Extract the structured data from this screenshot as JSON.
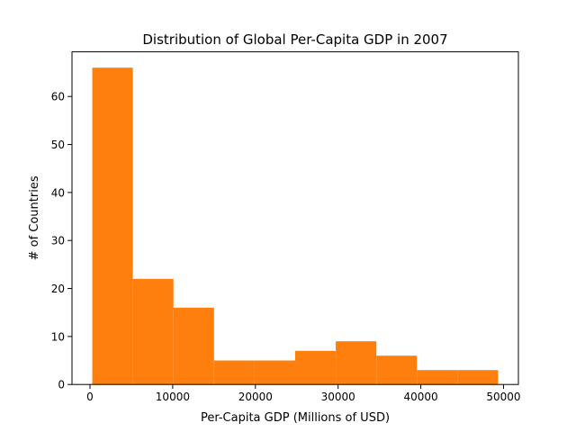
{
  "chart_data": {
    "type": "bar",
    "title": "Distribution of Global Per-Capita GDP in 2007",
    "xlabel": "Per-Capita GDP (Millions of USD)",
    "ylabel": "# of Countries",
    "bins": [
      {
        "start": 277.55,
        "end": 5184.2,
        "count": 66
      },
      {
        "start": 5184.2,
        "end": 10090.9,
        "count": 22
      },
      {
        "start": 10090.9,
        "end": 14997.6,
        "count": 16
      },
      {
        "start": 14997.6,
        "end": 19904.3,
        "count": 5
      },
      {
        "start": 19904.3,
        "end": 24811.0,
        "count": 5
      },
      {
        "start": 24811.0,
        "end": 29717.7,
        "count": 7
      },
      {
        "start": 29717.7,
        "end": 34624.4,
        "count": 9
      },
      {
        "start": 34624.4,
        "end": 39531.1,
        "count": 6
      },
      {
        "start": 39531.1,
        "end": 44437.8,
        "count": 3
      },
      {
        "start": 44437.8,
        "end": 49344.5,
        "count": 3
      }
    ],
    "xlim": [
      -2176,
      51798
    ],
    "ylim": [
      0,
      69.3
    ],
    "xticks": [
      0,
      10000,
      20000,
      30000,
      40000,
      50000
    ],
    "yticks": [
      0,
      10,
      20,
      30,
      40,
      50,
      60
    ],
    "bar_color": "#ff7f0e",
    "grid": false
  }
}
